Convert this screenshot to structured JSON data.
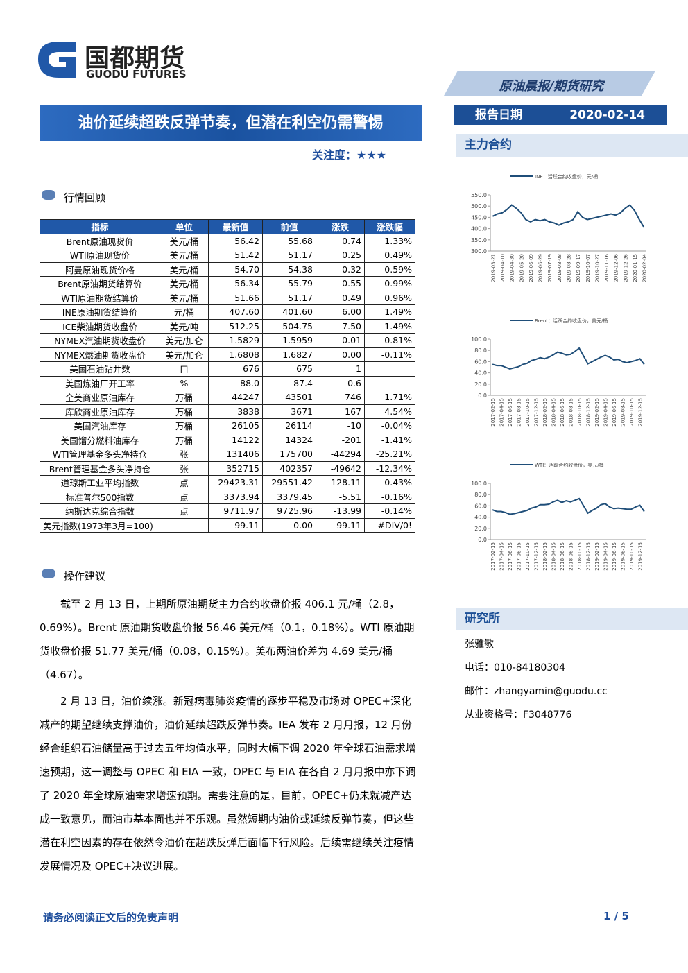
{
  "header": {
    "logo_cn": "国都期货",
    "logo_en": "GUODU FUTURES",
    "report_type": "原油晨报/期货研究"
  },
  "title": "油价延续超跌反弹节奏，但潜在利空仍需警惕",
  "rating_label": "关注度：",
  "rating_stars": "★★★",
  "report_date_label": "报告日期",
  "report_date": "2020-02-14",
  "main_contract_label": "主力合约",
  "sections": [
    "行情回顾",
    "操作建议"
  ],
  "table": {
    "header": [
      "指标",
      "单位",
      "最新值",
      "前值",
      "涨跌",
      "涨跌幅"
    ],
    "rows": [
      [
        "Brent原油现货价",
        "美元/桶",
        "56.42",
        "55.68",
        "0.74",
        "1.33%"
      ],
      [
        "WTI原油现货价",
        "美元/桶",
        "51.42",
        "51.17",
        "0.25",
        "0.49%"
      ],
      [
        "阿曼原油现货价格",
        "美元/桶",
        "54.70",
        "54.38",
        "0.32",
        "0.59%"
      ],
      [
        "Brent原油期货结算价",
        "美元/桶",
        "56.34",
        "55.79",
        "0.55",
        "0.99%"
      ],
      [
        "WTI原油期货结算价",
        "美元/桶",
        "51.66",
        "51.17",
        "0.49",
        "0.96%"
      ],
      [
        "INE原油期货结算价",
        "元/桶",
        "407.60",
        "401.60",
        "6.00",
        "1.49%"
      ],
      [
        "ICE柴油期货收盘价",
        "美元/吨",
        "512.25",
        "504.75",
        "7.50",
        "1.49%"
      ],
      [
        "NYMEX汽油期货收盘价",
        "美元/加仑",
        "1.5829",
        "1.5959",
        "-0.01",
        "-0.81%"
      ],
      [
        "NYMEX燃油期货收盘价",
        "美元/加仑",
        "1.6808",
        "1.6827",
        "0.00",
        "-0.11%"
      ],
      [
        "美国石油钻井数",
        "口",
        "676",
        "675",
        "1",
        null
      ],
      [
        "美国炼油厂开工率",
        "%",
        "88.0",
        "87.4",
        "0.6",
        null
      ],
      [
        "全美商业原油库存",
        "万桶",
        "44247",
        "43501",
        "746",
        "1.71%"
      ],
      [
        "库欣商业原油库存",
        "万桶",
        "3838",
        "3671",
        "167",
        "4.54%"
      ],
      [
        "美国汽油库存",
        "万桶",
        "26105",
        "26114",
        "-10",
        "-0.04%"
      ],
      [
        "美国馏分燃料油库存",
        "万桶",
        "14122",
        "14324",
        "-201",
        "-1.41%"
      ],
      [
        "WTI管理基金多头净持仓",
        "张",
        "131406",
        "175700",
        "-44294",
        "-25.21%"
      ],
      [
        "Brent管理基金多头净持仓",
        "张",
        "352715",
        "402357",
        "-49642",
        "-12.34%"
      ],
      [
        "道琼斯工业平均指数",
        "点",
        "29423.31",
        "29551.42",
        "-128.11",
        "-0.43%"
      ],
      [
        "标准普尔500指数",
        "点",
        "3373.94",
        "3379.45",
        "-5.51",
        "-0.16%"
      ],
      [
        "纳斯达克综合指数",
        "点",
        "9711.97",
        "9725.96",
        "-13.99",
        "-0.14%"
      ],
      [
        "美元指数(1973年3月=100)",
        null,
        "99.11",
        "0.00",
        "99.11",
        "#DIV/0!"
      ]
    ]
  },
  "paragraphs": [
    "截至 2 月 13 日，上期所原油期货主力合约收盘价报 406.1 元/桶（2.8，0.69%）。Brent 原油期货收盘价报 56.46 美元/桶（0.1，0.18%）。WTI 原油期货收盘价报 51.77 美元/桶（0.08，0.15%）。美布两油价差为 4.69 美元/桶（4.67）。",
    "2 月 13 日，油价续涨。新冠病毒肺炎疫情的逐步平稳及市场对 OPEC+深化减产的期望继续支撑油价，油价延续超跌反弹节奏。IEA 发布 2 月月报，12 月份经合组织石油储量高于过去五年均值水平，同时大幅下调 2020 年全球石油需求增速预期，这一调整与 OPEC 和 EIA 一致，OPEC 与 EIA 在各自 2 月月报中亦下调了 2020 年全球原油需求增速预期。需要注意的是，目前，OPEC+仍未就减产达成一致意见，而油市基本面也并不乐观。虽然短期内油价或延续反弹节奏，但这些潜在利空因素的存在依然令油价在超跌反弹后面临下行风险。后续需继续关注疫情发展情况及 OPEC+决议进展。"
  ],
  "institute": {
    "title": "研究所",
    "lines": [
      "张雅敏",
      "电话：010-84180304",
      "邮件：zhangyamin@guodu.cc",
      "从业资格号：F3048776"
    ]
  },
  "footer": {
    "disclaimer": "请务必阅读正文后的免责声明",
    "page": "1 / 5"
  },
  "chart_data": [
    {
      "type": "line",
      "categories": [
        "2019-03-21",
        null,
        "2019-04-10",
        null,
        "2019-04-30",
        null,
        "2019-05-20",
        null,
        "2019-06-09",
        null,
        "2019-06-29",
        null,
        "2019-07-19",
        null,
        "2019-08-08",
        null,
        "2019-08-28",
        null,
        "2019-09-17",
        null,
        "2019-10-07",
        null,
        "2019-10-27",
        null,
        "2019-11-16",
        null,
        "2019-12-06",
        null,
        "2019-12-26",
        null,
        "2020-01-15",
        null,
        "2020-02-04"
      ],
      "series": [
        {
          "name": "INE：活跃合约收盘价，元/桶",
          "color": "#1f4e79",
          "values": [
            455,
            465,
            470,
            485,
            505,
            490,
            470,
            440,
            430,
            440,
            435,
            440,
            430,
            425,
            415,
            425,
            430,
            440,
            475,
            450,
            440,
            445,
            450,
            455,
            460,
            465,
            460,
            470,
            490,
            505,
            480,
            440,
            405
          ]
        }
      ],
      "ylim": [
        300,
        550
      ],
      "yticks": [
        {
          "value": 300,
          "label": "300.0"
        },
        {
          "value": 350,
          "label": "350.0"
        },
        {
          "value": 400,
          "label": "400.0"
        },
        {
          "value": 450,
          "label": "450.0"
        },
        {
          "value": 500,
          "label": "500.0"
        },
        {
          "value": 550,
          "label": "550.0"
        }
      ]
    },
    {
      "type": "line",
      "categories": [
        "2017-02-15",
        null,
        "2017-04-15",
        null,
        "2017-06-15",
        null,
        "2017-08-15",
        null,
        "2017-10-15",
        null,
        "2017-12-15",
        null,
        "2018-02-15",
        null,
        "2018-04-15",
        null,
        "2018-06-15",
        null,
        "2018-08-15",
        null,
        "2018-10-15",
        null,
        "2018-12-15",
        null,
        "2019-02-15",
        null,
        "2019-04-15",
        null,
        "2019-06-15",
        null,
        "2019-08-15",
        null,
        "2019-10-15",
        null,
        "2019-12-15",
        null
      ],
      "series": [
        {
          "name": "Brent：活跃合约收盘价，美元/桶",
          "color": "#1f4e79",
          "values": [
            55,
            53,
            53,
            50,
            47,
            49,
            51,
            55,
            57,
            62,
            64,
            67,
            65,
            68,
            72,
            77,
            75,
            72,
            73,
            78,
            84,
            70,
            56,
            60,
            64,
            68,
            71,
            68,
            63,
            64,
            60,
            58,
            60,
            62,
            65,
            55
          ]
        }
      ],
      "ylim": [
        0,
        100
      ],
      "yticks": [
        {
          "value": 0,
          "label": "0.0"
        },
        {
          "value": 20,
          "label": "20.0"
        },
        {
          "value": 40,
          "label": "40.0"
        },
        {
          "value": 60,
          "label": "60.0"
        },
        {
          "value": 80,
          "label": "80.0"
        },
        {
          "value": 100,
          "label": "100.0"
        }
      ]
    },
    {
      "type": "line",
      "categories": [
        "2017-02-15",
        null,
        "2017-04-15",
        null,
        "2017-06-15",
        null,
        "2017-08-15",
        null,
        "2017-10-15",
        null,
        "2017-12-15",
        null,
        "2018-02-15",
        null,
        "2018-04-15",
        null,
        "2018-06-15",
        null,
        "2018-08-15",
        null,
        "2018-10-15",
        null,
        "2018-12-15",
        null,
        "2019-02-15",
        null,
        "2019-04-15",
        null,
        "2019-06-15",
        null,
        "2019-08-15",
        null,
        "2019-10-15",
        null,
        "2019-12-15",
        null
      ],
      "series": [
        {
          "name": "WTI：活跃合约收盘价，美元/桶",
          "color": "#1f4e79",
          "values": [
            53,
            50,
            50,
            48,
            45,
            46,
            48,
            50,
            52,
            56,
            58,
            62,
            62,
            63,
            67,
            70,
            66,
            69,
            67,
            70,
            73,
            60,
            47,
            52,
            56,
            62,
            64,
            58,
            55,
            56,
            55,
            54,
            54,
            58,
            61,
            50
          ]
        }
      ],
      "ylim": [
        0,
        100
      ],
      "yticks": [
        {
          "value": 0,
          "label": "0.0"
        },
        {
          "value": 20,
          "label": "20.0"
        },
        {
          "value": 40,
          "label": "40.0"
        },
        {
          "value": 60,
          "label": "60.0"
        },
        {
          "value": 80,
          "label": "80.0"
        },
        {
          "value": 100,
          "label": "100.0"
        }
      ]
    }
  ]
}
